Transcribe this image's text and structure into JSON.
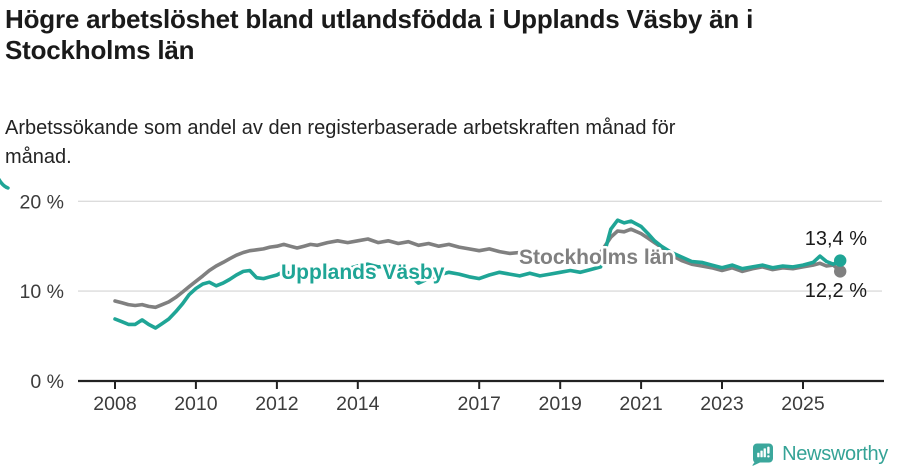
{
  "header": {
    "title_lines": [
      "Högre arbetslöshet bland utlandsfödda i Upplands Väsby än i",
      "Stockholms län"
    ],
    "subtitle_lines": [
      "Arbetssökande som andel av den registerbaserade arbetskraften månad för",
      "månad."
    ]
  },
  "colors": {
    "accent_teal": "#1FA596",
    "series_gray": "#808080",
    "grid": "#dcdcdc",
    "axis": "#222222",
    "axis_text": "#3c3c3c",
    "label_text": "#1a1a1a",
    "logo_teal": "#3BA79C"
  },
  "chart_data": {
    "type": "line",
    "unit": "%",
    "grid": "horizontal",
    "x_axis": {
      "ticks": [
        2008,
        2010,
        2012,
        2014,
        2017,
        2019,
        2021,
        2023,
        2025
      ],
      "range_years": [
        2007.1,
        2026.9
      ]
    },
    "y_axis": {
      "ticks": [
        {
          "value": 20,
          "label": "20 %"
        },
        {
          "value": 10,
          "label": "10 %"
        },
        {
          "value": 0,
          "label": "0 %"
        }
      ],
      "ylim": [
        0,
        22.3
      ]
    },
    "series": [
      {
        "name": "Stockholms län",
        "color": "#808080",
        "end_label": "12,2 %",
        "end_value": 12.2,
        "points": [
          [
            2008,
            8.9
          ],
          [
            2008.17,
            8.7
          ],
          [
            2008.33,
            8.5
          ],
          [
            2008.5,
            8.4
          ],
          [
            2008.67,
            8.5
          ],
          [
            2008.83,
            8.3
          ],
          [
            2009,
            8.2
          ],
          [
            2009.17,
            8.5
          ],
          [
            2009.33,
            8.8
          ],
          [
            2009.5,
            9.3
          ],
          [
            2009.67,
            9.9
          ],
          [
            2009.83,
            10.5
          ],
          [
            2010,
            11.1
          ],
          [
            2010.17,
            11.7
          ],
          [
            2010.33,
            12.3
          ],
          [
            2010.5,
            12.8
          ],
          [
            2010.67,
            13.2
          ],
          [
            2010.83,
            13.6
          ],
          [
            2011,
            14
          ],
          [
            2011.17,
            14.3
          ],
          [
            2011.33,
            14.5
          ],
          [
            2011.5,
            14.6
          ],
          [
            2011.67,
            14.7
          ],
          [
            2011.83,
            14.9
          ],
          [
            2012,
            15
          ],
          [
            2012.17,
            15.2
          ],
          [
            2012.33,
            15
          ],
          [
            2012.5,
            14.8
          ],
          [
            2012.67,
            15
          ],
          [
            2012.83,
            15.2
          ],
          [
            2013,
            15.1
          ],
          [
            2013.25,
            15.4
          ],
          [
            2013.5,
            15.6
          ],
          [
            2013.75,
            15.4
          ],
          [
            2014,
            15.6
          ],
          [
            2014.25,
            15.8
          ],
          [
            2014.5,
            15.4
          ],
          [
            2014.75,
            15.6
          ],
          [
            2015,
            15.3
          ],
          [
            2015.25,
            15.5
          ],
          [
            2015.5,
            15.1
          ],
          [
            2015.75,
            15.3
          ],
          [
            2016,
            15
          ],
          [
            2016.25,
            15.2
          ],
          [
            2016.5,
            14.9
          ],
          [
            2016.75,
            14.7
          ],
          [
            2017,
            14.5
          ],
          [
            2017.25,
            14.7
          ],
          [
            2017.5,
            14.4
          ],
          [
            2017.75,
            14.2
          ],
          [
            2018,
            14.3
          ],
          [
            2018.25,
            14.1
          ],
          [
            2018.5,
            13.9
          ],
          [
            2018.75,
            14.1
          ],
          [
            2019,
            13.9
          ],
          [
            2019.25,
            14.2
          ],
          [
            2019.5,
            13.9
          ],
          [
            2019.75,
            14.1
          ],
          [
            2020,
            14.3
          ],
          [
            2020.25,
            16
          ],
          [
            2020.42,
            16.7
          ],
          [
            2020.58,
            16.6
          ],
          [
            2020.75,
            16.9
          ],
          [
            2021,
            16.4
          ],
          [
            2021.17,
            15.9
          ],
          [
            2021.33,
            15.4
          ],
          [
            2021.5,
            14.9
          ],
          [
            2021.75,
            14
          ],
          [
            2022,
            13.4
          ],
          [
            2022.25,
            13
          ],
          [
            2022.5,
            12.8
          ],
          [
            2022.75,
            12.6
          ],
          [
            2023,
            12.3
          ],
          [
            2023.25,
            12.6
          ],
          [
            2023.5,
            12.2
          ],
          [
            2023.75,
            12.5
          ],
          [
            2024,
            12.7
          ],
          [
            2024.25,
            12.4
          ],
          [
            2024.5,
            12.6
          ],
          [
            2024.75,
            12.5
          ],
          [
            2025,
            12.7
          ],
          [
            2025.25,
            12.9
          ],
          [
            2025.42,
            13.1
          ],
          [
            2025.58,
            12.8
          ],
          [
            2025.75,
            12.9
          ],
          [
            2025.92,
            12.2
          ]
        ]
      },
      {
        "name": "Upplands Väsby",
        "color": "#1FA596",
        "end_label": "13,4 %",
        "end_value": 13.4,
        "points": [
          [
            2008,
            6.9
          ],
          [
            2008.17,
            6.6
          ],
          [
            2008.33,
            6.3
          ],
          [
            2008.5,
            6.3
          ],
          [
            2008.67,
            6.8
          ],
          [
            2008.83,
            6.3
          ],
          [
            2009,
            5.9
          ],
          [
            2009.17,
            6.4
          ],
          [
            2009.33,
            6.9
          ],
          [
            2009.5,
            7.7
          ],
          [
            2009.67,
            8.6
          ],
          [
            2009.83,
            9.6
          ],
          [
            2010,
            10.3
          ],
          [
            2010.17,
            10.8
          ],
          [
            2010.33,
            11
          ],
          [
            2010.5,
            10.6
          ],
          [
            2010.67,
            10.9
          ],
          [
            2010.83,
            11.3
          ],
          [
            2011,
            11.8
          ],
          [
            2011.17,
            12.2
          ],
          [
            2011.33,
            12.3
          ],
          [
            2011.5,
            11.5
          ],
          [
            2011.67,
            11.4
          ],
          [
            2011.83,
            11.6
          ],
          [
            2012,
            11.8
          ],
          [
            2012.17,
            12.2
          ],
          [
            2012.33,
            12
          ],
          [
            2012.5,
            11.8
          ],
          [
            2012.67,
            12
          ],
          [
            2012.83,
            12.2
          ],
          [
            2013,
            12.4
          ],
          [
            2013.25,
            12.6
          ],
          [
            2013.5,
            12.3
          ],
          [
            2013.75,
            12.5
          ],
          [
            2014,
            12.8
          ],
          [
            2014.25,
            13
          ],
          [
            2014.5,
            12.7
          ],
          [
            2014.75,
            12.8
          ],
          [
            2015,
            12.6
          ],
          [
            2015.25,
            11.9
          ],
          [
            2015.5,
            10.9
          ],
          [
            2015.75,
            11.4
          ],
          [
            2016,
            11.8
          ],
          [
            2016.25,
            12.1
          ],
          [
            2016.5,
            11.9
          ],
          [
            2016.75,
            11.6
          ],
          [
            2017,
            11.4
          ],
          [
            2017.25,
            11.8
          ],
          [
            2017.5,
            12.1
          ],
          [
            2017.75,
            11.9
          ],
          [
            2018,
            11.7
          ],
          [
            2018.25,
            12
          ],
          [
            2018.5,
            11.7
          ],
          [
            2018.75,
            11.9
          ],
          [
            2019,
            12.1
          ],
          [
            2019.25,
            12.3
          ],
          [
            2019.5,
            12.1
          ],
          [
            2019.75,
            12.4
          ],
          [
            2020,
            12.7
          ],
          [
            2020.25,
            16.9
          ],
          [
            2020.42,
            17.9
          ],
          [
            2020.58,
            17.6
          ],
          [
            2020.75,
            17.8
          ],
          [
            2021,
            17.2
          ],
          [
            2021.17,
            16.4
          ],
          [
            2021.33,
            15.6
          ],
          [
            2021.5,
            15
          ],
          [
            2021.75,
            14.3
          ],
          [
            2022,
            13.8
          ],
          [
            2022.25,
            13.3
          ],
          [
            2022.5,
            13.2
          ],
          [
            2022.75,
            12.9
          ],
          [
            2023,
            12.6
          ],
          [
            2023.25,
            12.9
          ],
          [
            2023.5,
            12.5
          ],
          [
            2023.75,
            12.7
          ],
          [
            2024,
            12.9
          ],
          [
            2024.25,
            12.6
          ],
          [
            2024.5,
            12.8
          ],
          [
            2024.75,
            12.7
          ],
          [
            2025,
            12.9
          ],
          [
            2025.25,
            13.2
          ],
          [
            2025.42,
            13.9
          ],
          [
            2025.58,
            13.3
          ],
          [
            2025.75,
            13
          ],
          [
            2025.92,
            13.4
          ]
        ]
      }
    ]
  },
  "footer": {
    "brand": "Newsworthy"
  }
}
